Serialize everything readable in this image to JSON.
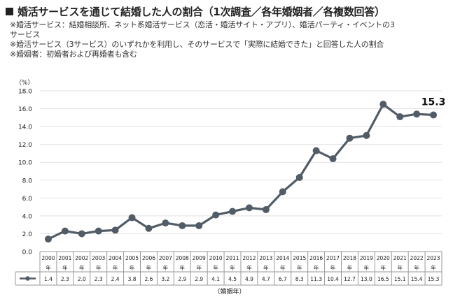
{
  "title": "婚活サービスを通じて結婚した人の割合（1次調査／各年婚姻者／各複数回答）",
  "notes": [
    "※婚活サービス：結婚相談所、ネット系婚活サービス（恋活・婚活サイト・アプリ）、婚活パーティ・イベントの3",
    "サービス",
    "※婚活サービス（3サービス）のいずれかを利用し、そのサービスで「実際に結婚できた」と回答した人の割合",
    "※婚姻者：初婚者および再婚者も含む"
  ],
  "colors": {
    "line": "#525c66",
    "grid": "#e2e2e2",
    "axis": "#999999",
    "text": "#222222"
  },
  "chart_data": {
    "type": "line",
    "ylabel": "（%）",
    "xlabel": "（婚姻年）",
    "ylim": [
      0,
      18
    ],
    "yticks": [
      "0.0",
      "2.0",
      "4.0",
      "6.0",
      "8.0",
      "10.0",
      "12.0",
      "14.0",
      "16.0",
      "18.0"
    ],
    "year_suffix": "年",
    "categories": [
      "2000",
      "2001",
      "2002",
      "2003",
      "2004",
      "2005",
      "2006",
      "2007",
      "2008",
      "2009",
      "2010",
      "2011",
      "2012",
      "2013",
      "2014",
      "2015",
      "2016",
      "2017",
      "2018",
      "2019",
      "2020",
      "2021",
      "2022",
      "2023"
    ],
    "values": [
      1.4,
      2.3,
      2.0,
      2.3,
      2.4,
      3.8,
      2.6,
      3.2,
      2.9,
      2.9,
      4.1,
      4.5,
      4.9,
      4.7,
      6.7,
      8.3,
      11.3,
      10.4,
      12.7,
      13.0,
      16.5,
      15.1,
      15.4,
      15.3
    ],
    "value_labels": [
      "1.4",
      "2.3",
      "2.0",
      "2.3",
      "2.4",
      "3.8",
      "2.6",
      "3.2",
      "2.9",
      "2.9",
      "4.1",
      "4.5",
      "4.9",
      "4.7",
      "6.7",
      "8.3",
      "11.3",
      "10.4",
      "12.7",
      "13.0",
      "16.5",
      "15.1",
      "15.4",
      "15.3"
    ],
    "highlight_label": "15.3",
    "grid": true,
    "legend": "data-table-left"
  }
}
